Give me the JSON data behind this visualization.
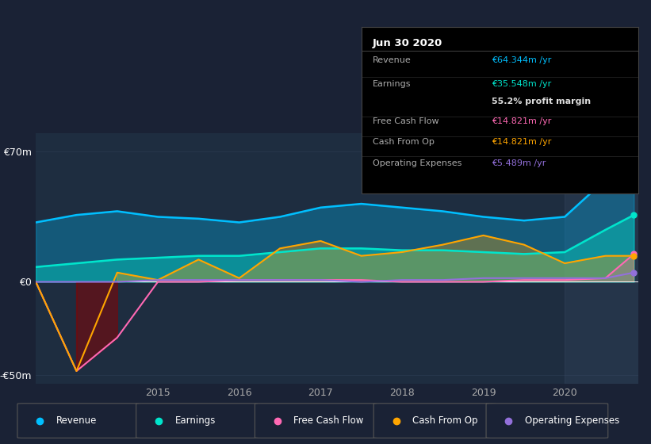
{
  "bg_color": "#1a2235",
  "plot_bg_color": "#1e2d40",
  "yticks": [
    "€70m",
    "€0",
    "-€50m"
  ],
  "ytick_values": [
    70,
    0,
    -50
  ],
  "ylim": [
    -55,
    80
  ],
  "xlim": [
    2013.5,
    2020.9
  ],
  "xtick_labels": [
    "2015",
    "2016",
    "2017",
    "2018",
    "2019",
    "2020"
  ],
  "xtick_positions": [
    2015,
    2016,
    2017,
    2018,
    2019,
    2020
  ],
  "legend": [
    {
      "label": "Revenue",
      "color": "#00bfff"
    },
    {
      "label": "Earnings",
      "color": "#00e5cc"
    },
    {
      "label": "Free Cash Flow",
      "color": "#ff69b4"
    },
    {
      "label": "Cash From Op",
      "color": "#ffa500"
    },
    {
      "label": "Operating Expenses",
      "color": "#9370db"
    }
  ],
  "tooltip_title": "Jun 30 2020",
  "tooltip_rows": [
    {
      "label": "Revenue",
      "value": "€64.344m /yr",
      "value_color": "#00bfff",
      "bold_value": false
    },
    {
      "label": "Earnings",
      "value": "€35.548m /yr",
      "value_color": "#00e5cc",
      "bold_value": false
    },
    {
      "label": "",
      "value": "55.2% profit margin",
      "value_color": "#dddddd",
      "bold_value": true
    },
    {
      "label": "Free Cash Flow",
      "value": "€14.821m /yr",
      "value_color": "#ff69b4",
      "bold_value": false
    },
    {
      "label": "Cash From Op",
      "value": "€14.821m /yr",
      "value_color": "#ffa500",
      "bold_value": false
    },
    {
      "label": "Operating Expenses",
      "value": "€5.489m /yr",
      "value_color": "#9370db",
      "bold_value": false
    }
  ],
  "x": [
    2013.5,
    2014.0,
    2014.5,
    2015.0,
    2015.5,
    2016.0,
    2016.5,
    2017.0,
    2017.5,
    2018.0,
    2018.5,
    2019.0,
    2019.5,
    2020.0,
    2020.5,
    2020.85
  ],
  "revenue": [
    32,
    36,
    38,
    35,
    34,
    32,
    35,
    40,
    42,
    40,
    38,
    35,
    33,
    35,
    55,
    64
  ],
  "earnings": [
    8,
    10,
    12,
    13,
    14,
    14,
    16,
    18,
    18,
    17,
    17,
    16,
    15,
    16,
    28,
    36
  ],
  "free_cash_flow": [
    0,
    -48,
    -30,
    0,
    0,
    1,
    1,
    1,
    1,
    0,
    0,
    0,
    1,
    1,
    2,
    15
  ],
  "cash_from_op": [
    0,
    -48,
    5,
    1,
    12,
    2,
    18,
    22,
    14,
    16,
    20,
    25,
    20,
    10,
    14,
    14
  ],
  "op_expenses": [
    0,
    0,
    0,
    1,
    1,
    1,
    1,
    1,
    0,
    1,
    1,
    2,
    2,
    2,
    2,
    5
  ],
  "highlight_x_start": 2020.0,
  "highlight_x_end": 2020.9,
  "rev_color": "#00bfff",
  "earn_color": "#00e5cc",
  "fcf_color": "#ff69b4",
  "cfop_color": "#ffa500",
  "opex_color": "#9370db"
}
